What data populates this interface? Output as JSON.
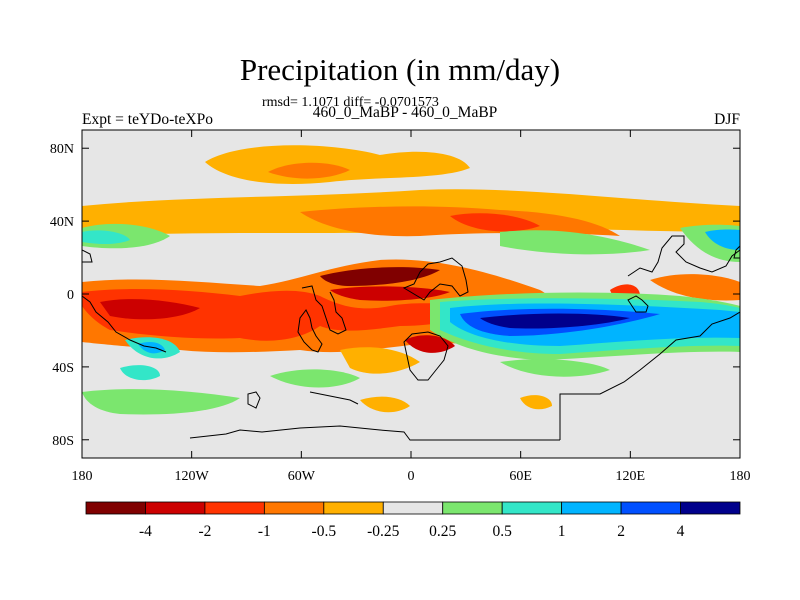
{
  "chart_data": {
    "type": "heatmap",
    "title": "Precipitation (in mm/day)",
    "stats_line": "rmsd= 1.1071 diff= -0.0701573",
    "subtitle": "460_0_MaBP - 460_0_MaBP",
    "left_label": "Expt = teYDo-teXPo",
    "right_label": "DJF",
    "x_axis": {
      "range": [
        -180,
        180
      ],
      "ticks": [
        -180,
        -120,
        -60,
        0,
        60,
        120,
        180
      ],
      "tick_labels": [
        "180",
        "120W",
        "60W",
        "0",
        "60E",
        "120E",
        "180"
      ]
    },
    "y_axis": {
      "range": [
        -90,
        90
      ],
      "ticks": [
        80,
        40,
        0,
        -40,
        -80
      ],
      "tick_labels": [
        "80N",
        "40N",
        "0",
        "40S",
        "80S"
      ]
    },
    "colorbar": {
      "colors": [
        "#800000",
        "#cc0000",
        "#ff3300",
        "#ff7700",
        "#ffb000",
        "#e6e6e6",
        "#7be66e",
        "#33e6c8",
        "#00b4ff",
        "#0050ff",
        "#00008c"
      ],
      "labels": [
        "-4",
        "-2",
        "-1",
        "-0.5",
        "-0.25",
        "0.25",
        "0.5",
        "1",
        "2",
        "4"
      ]
    }
  }
}
